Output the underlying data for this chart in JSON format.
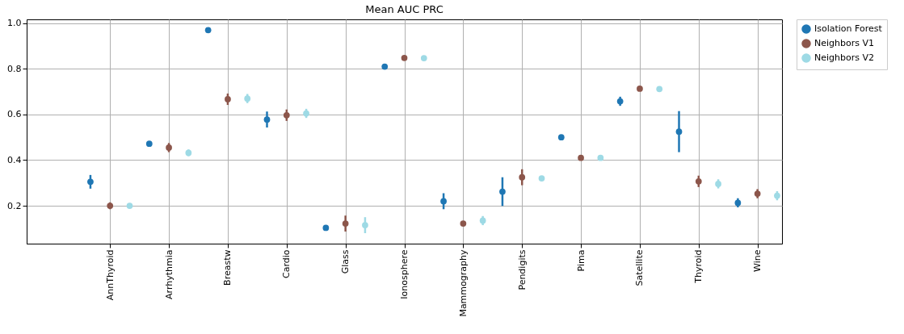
{
  "chart_data": {
    "type": "scatter",
    "title": "Mean AUC PRC",
    "categories": [
      "AnnThyroid",
      "Arrhythmia",
      "Breastw",
      "Cardio",
      "Glass",
      "Ionosphere",
      "Mammography",
      "Pendigits",
      "Pima",
      "Satellite",
      "Thyroid",
      "Wine"
    ],
    "ylim": [
      0.034,
      1.017
    ],
    "yticks": [
      {
        "value": 0.2,
        "label": "0.2"
      },
      {
        "value": 0.4,
        "label": "0.4"
      },
      {
        "value": 0.6,
        "label": "0.6"
      },
      {
        "value": 0.8,
        "label": "0.8"
      },
      {
        "value": 1.0,
        "label": "1.0"
      }
    ],
    "grid": true,
    "legend": "right",
    "marker": "circle",
    "series": [
      {
        "name": "Isolation Forest",
        "color": "#1f77b4",
        "values": [
          0.305,
          0.472,
          0.97,
          0.578,
          0.103,
          0.81,
          0.22,
          0.262,
          0.5,
          0.658,
          0.525,
          0.213
        ],
        "errors": [
          0.03,
          null,
          null,
          0.035,
          null,
          null,
          0.035,
          0.063,
          null,
          0.02,
          0.09,
          0.02
        ]
      },
      {
        "name": "Neighbors V1",
        "color": "#8c564b",
        "values": [
          0.2,
          0.455,
          0.667,
          0.597,
          0.122,
          0.848,
          0.122,
          0.325,
          0.41,
          0.713,
          0.307,
          0.253
        ],
        "errors": [
          0.015,
          0.02,
          0.025,
          0.025,
          0.035,
          null,
          null,
          0.035,
          null,
          null,
          0.025,
          0.02
        ]
      },
      {
        "name": "Neighbors V2",
        "color": "#9edae5",
        "values": [
          0.2,
          0.432,
          0.67,
          0.605,
          0.115,
          0.847,
          0.135,
          0.32,
          0.41,
          0.712,
          0.296,
          0.244
        ],
        "errors": [
          null,
          0.015,
          0.02,
          0.02,
          0.035,
          null,
          0.02,
          null,
          null,
          null,
          0.02,
          0.02
        ]
      }
    ]
  }
}
